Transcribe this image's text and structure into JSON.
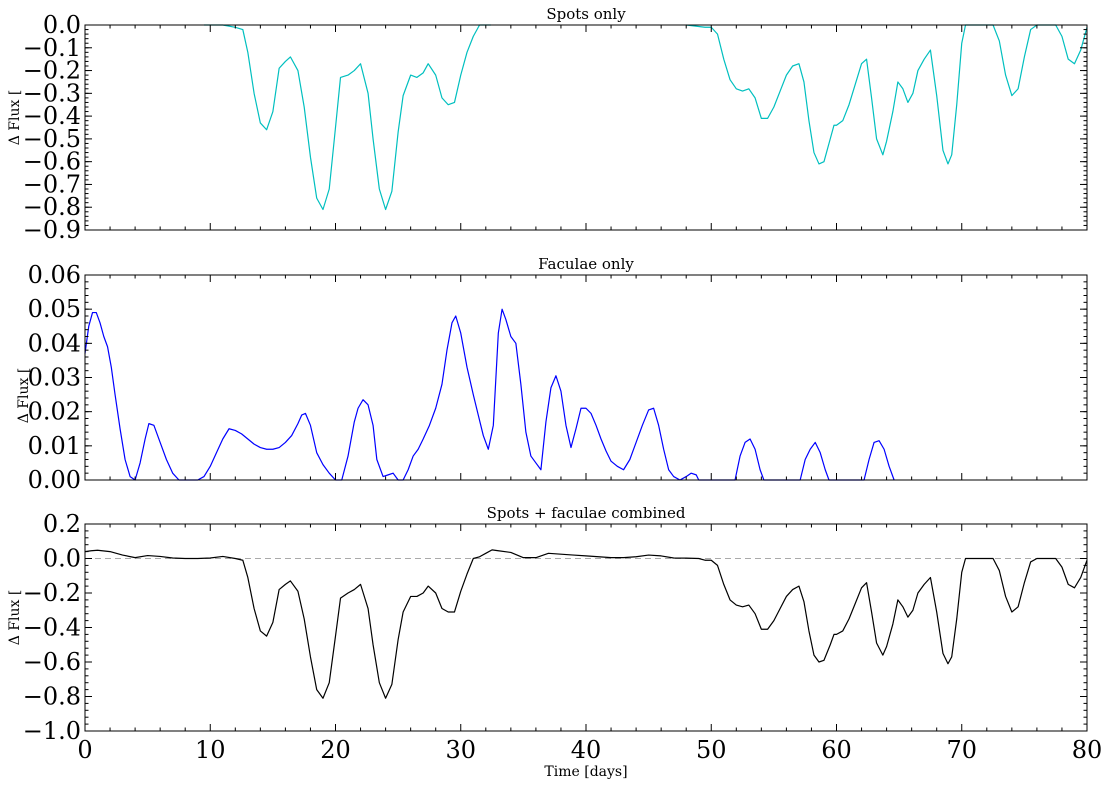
{
  "chart_data": [
    {
      "type": "line",
      "title": "Spots only",
      "xlabel": "",
      "ylabel": "Δ Flux [",
      "xlim": [
        0,
        80
      ],
      "ylim": [
        -0.9,
        0.0
      ],
      "yticks": [
        0.0,
        -0.1,
        -0.2,
        -0.3,
        -0.4,
        -0.5,
        -0.6,
        -0.7,
        -0.8,
        -0.9
      ],
      "ytick_labels": [
        "0.0",
        "−0.1",
        "−0.2",
        "−0.3",
        "−0.4",
        "−0.5",
        "−0.6",
        "−0.7",
        "−0.8",
        "−0.9"
      ],
      "xticks": [
        0,
        10,
        20,
        30,
        40,
        50,
        60,
        70,
        80
      ],
      "xtick_labels": [],
      "grid": false,
      "color": "#00bfbf",
      "series": [
        {
          "x": [
            9.5,
            11.0,
            12.0,
            12.6,
            13.0,
            13.5,
            14.0,
            14.5,
            15.0,
            15.5,
            16.0,
            16.4,
            17.0,
            17.5,
            18.0,
            18.5,
            19.0,
            19.5,
            20.0,
            20.4,
            21.0,
            21.5,
            22.0,
            22.6,
            23.0,
            23.5,
            24.0,
            24.5,
            25.0,
            25.4,
            26.0,
            26.5,
            27.0,
            27.4,
            28.0,
            28.5,
            29.0,
            29.5,
            30.0,
            30.5,
            31.0,
            31.5,
            32.0,
            32.4
          ],
          "y": [
            0.0,
            0.0,
            -0.01,
            -0.02,
            -0.12,
            -0.3,
            -0.43,
            -0.46,
            -0.38,
            -0.19,
            -0.16,
            -0.14,
            -0.2,
            -0.36,
            -0.58,
            -0.76,
            -0.81,
            -0.72,
            -0.45,
            -0.23,
            -0.22,
            -0.2,
            -0.17,
            -0.3,
            -0.5,
            -0.72,
            -0.81,
            -0.73,
            -0.47,
            -0.31,
            -0.22,
            -0.23,
            -0.21,
            -0.17,
            -0.22,
            -0.32,
            -0.35,
            -0.34,
            -0.22,
            -0.12,
            -0.05,
            0.0,
            0.0,
            0.0
          ]
        },
        {
          "x": [
            48.0,
            49.5,
            50.0,
            50.5,
            51.0,
            51.5,
            52.0,
            52.5,
            53.0,
            53.5,
            54.0,
            54.5,
            55.0,
            55.5,
            56.0,
            56.5,
            57.0,
            57.4,
            57.8,
            58.2,
            58.6,
            59.0,
            59.5,
            59.8,
            60.0,
            60.5,
            61.0,
            61.5,
            62.0,
            62.4,
            62.8,
            63.2,
            63.7,
            64.0,
            64.5,
            64.9,
            65.3,
            65.7,
            66.1,
            66.5,
            67.0,
            67.5,
            68.0,
            68.5,
            68.9,
            69.2,
            69.6,
            70.0,
            70.3,
            71.0,
            72.0,
            72.5,
            73.0,
            73.5,
            74.0,
            74.5,
            75.0,
            75.5,
            76.0,
            77.0,
            77.5,
            78.0,
            78.5,
            79.0,
            79.5,
            80.0
          ],
          "y": [
            0.0,
            -0.01,
            -0.01,
            -0.04,
            -0.15,
            -0.24,
            -0.28,
            -0.29,
            -0.28,
            -0.32,
            -0.41,
            -0.41,
            -0.36,
            -0.29,
            -0.22,
            -0.18,
            -0.17,
            -0.25,
            -0.42,
            -0.56,
            -0.61,
            -0.6,
            -0.5,
            -0.44,
            -0.44,
            -0.42,
            -0.35,
            -0.26,
            -0.17,
            -0.15,
            -0.32,
            -0.5,
            -0.57,
            -0.51,
            -0.38,
            -0.25,
            -0.28,
            -0.34,
            -0.3,
            -0.2,
            -0.15,
            -0.11,
            -0.31,
            -0.55,
            -0.61,
            -0.57,
            -0.35,
            -0.08,
            0.0,
            0.0,
            0.0,
            0.0,
            -0.07,
            -0.22,
            -0.31,
            -0.28,
            -0.14,
            -0.02,
            0.0,
            0.0,
            0.0,
            -0.05,
            -0.15,
            -0.17,
            -0.11,
            -0.01
          ]
        }
      ]
    },
    {
      "type": "line",
      "title": "Faculae only",
      "xlabel": "",
      "ylabel": "Δ Flux [",
      "xlim": [
        0,
        80
      ],
      "ylim": [
        0.0,
        0.06
      ],
      "yticks": [
        0.0,
        0.01,
        0.02,
        0.03,
        0.04,
        0.05,
        0.06
      ],
      "ytick_labels": [
        "0.00",
        "0.01",
        "0.02",
        "0.03",
        "0.04",
        "0.05",
        "0.06"
      ],
      "xticks": [
        0,
        10,
        20,
        30,
        40,
        50,
        60,
        70,
        80
      ],
      "xtick_labels": [],
      "grid": false,
      "color": "#0000ff",
      "series": [
        {
          "x": [
            0.0,
            0.3,
            0.6,
            0.9,
            1.2,
            1.5,
            1.8,
            2.1,
            2.4,
            2.8,
            3.2,
            3.6,
            4.0,
            4.4,
            4.8,
            5.1,
            5.5,
            6.0,
            6.5,
            7.0,
            7.5,
            8.0,
            8.5,
            9.0,
            9.5,
            10.0,
            10.5,
            11.0,
            11.5,
            12.0,
            12.5,
            13.0,
            13.5,
            14.0,
            14.5,
            15.0,
            15.5,
            16.0,
            16.5,
            17.0,
            17.3,
            17.6,
            18.0,
            18.5,
            19.0,
            19.5,
            20.0,
            20.5,
            21.0,
            21.5,
            21.8,
            22.2,
            22.6,
            23.0,
            23.3,
            23.8,
            24.2,
            24.6,
            25.0,
            25.4,
            25.8,
            26.2,
            26.6,
            27.0,
            27.5,
            28.0,
            28.5,
            28.9,
            29.3,
            29.6,
            30.0,
            30.5,
            31.0,
            31.4,
            31.8,
            32.2,
            32.6,
            33.0,
            33.3,
            33.6,
            34.0,
            34.4,
            34.8,
            35.2,
            35.6,
            36.0,
            36.4,
            36.8,
            37.2,
            37.6,
            38.0,
            38.4,
            38.8,
            39.2,
            39.6,
            40.0,
            40.4,
            40.8,
            41.2,
            41.6,
            42.0,
            42.5,
            43.0,
            43.5,
            44.0,
            44.5,
            45.0,
            45.4,
            45.8,
            46.2,
            46.6,
            47.0,
            47.5,
            48.0,
            48.4,
            48.8,
            49.0,
            51.9,
            52.3,
            52.7,
            53.1,
            53.5,
            53.9,
            54.2,
            57.1,
            57.5,
            57.9,
            58.3,
            58.7,
            59.1,
            59.4,
            62.2,
            62.6,
            63.0,
            63.4,
            63.8,
            64.2,
            64.6
          ],
          "y": [
            0.037,
            0.045,
            0.049,
            0.049,
            0.046,
            0.042,
            0.039,
            0.033,
            0.025,
            0.015,
            0.006,
            0.001,
            0.0,
            0.005,
            0.012,
            0.0165,
            0.016,
            0.011,
            0.006,
            0.002,
            0.0,
            0.0,
            0.0,
            0.0,
            0.001,
            0.004,
            0.008,
            0.012,
            0.015,
            0.0145,
            0.0135,
            0.012,
            0.0105,
            0.0095,
            0.009,
            0.009,
            0.0095,
            0.011,
            0.013,
            0.0165,
            0.019,
            0.0195,
            0.016,
            0.008,
            0.0045,
            0.002,
            0.0,
            0.0,
            0.007,
            0.017,
            0.021,
            0.0235,
            0.022,
            0.016,
            0.006,
            0.001,
            0.0015,
            0.002,
            0.0,
            0.0,
            0.003,
            0.007,
            0.009,
            0.012,
            0.016,
            0.021,
            0.028,
            0.038,
            0.046,
            0.048,
            0.043,
            0.033,
            0.025,
            0.019,
            0.013,
            0.009,
            0.016,
            0.043,
            0.05,
            0.047,
            0.042,
            0.04,
            0.028,
            0.014,
            0.007,
            0.005,
            0.003,
            0.017,
            0.027,
            0.0305,
            0.026,
            0.016,
            0.0095,
            0.015,
            0.021,
            0.021,
            0.0195,
            0.016,
            0.012,
            0.0085,
            0.0055,
            0.004,
            0.003,
            0.006,
            0.011,
            0.016,
            0.0205,
            0.021,
            0.016,
            0.009,
            0.003,
            0.001,
            0.0,
            0.001,
            0.002,
            0.0015,
            0.0,
            0.0,
            0.007,
            0.011,
            0.012,
            0.009,
            0.003,
            0.0,
            0.0,
            0.006,
            0.009,
            0.011,
            0.008,
            0.003,
            0.0,
            0.0,
            0.006,
            0.011,
            0.0115,
            0.009,
            0.004,
            0.0
          ]
        }
      ]
    },
    {
      "type": "line",
      "title": "Spots + faculae combined",
      "xlabel": "Time [days]",
      "ylabel": "Δ Flux [",
      "xlim": [
        0,
        80
      ],
      "ylim": [
        -1.0,
        0.2
      ],
      "yticks": [
        0.2,
        0.0,
        -0.2,
        -0.4,
        -0.6,
        -0.8,
        -1.0
      ],
      "ytick_labels": [
        "0.2",
        "0.0",
        "−0.2",
        "−0.4",
        "−0.6",
        "−0.8",
        "−1.0"
      ],
      "xticks": [
        0,
        10,
        20,
        30,
        40,
        50,
        60,
        70,
        80
      ],
      "xtick_labels": [
        "0",
        "10",
        "20",
        "30",
        "40",
        "50",
        "60",
        "70",
        "80"
      ],
      "grid": false,
      "color": "#000000",
      "reference_line": {
        "y": 0.0,
        "color": "#aaaaaa",
        "style": "dashed"
      },
      "series": [
        {
          "x": [
            0.0,
            0.5,
            1.0,
            2.0,
            3.0,
            4.0,
            5.0,
            6.0,
            7.0,
            8.0,
            9.0,
            10.0,
            11.0,
            12.0,
            12.6,
            13.0,
            13.5,
            14.0,
            14.5,
            15.0,
            15.5,
            16.0,
            16.4,
            17.0,
            17.5,
            18.0,
            18.5,
            19.0,
            19.5,
            20.0,
            20.4,
            21.0,
            21.5,
            22.0,
            22.6,
            23.0,
            23.5,
            24.0,
            24.5,
            25.0,
            25.4,
            26.0,
            26.5,
            27.0,
            27.4,
            28.0,
            28.5,
            29.0,
            29.5,
            30.0,
            30.5,
            31.0,
            31.5,
            32.0,
            32.5,
            33.0,
            34.0,
            35.0,
            36.0,
            37.0,
            38.0,
            39.0,
            40.0,
            41.0,
            42.0,
            43.0,
            44.0,
            45.0,
            46.0,
            47.0,
            48.0,
            49.0,
            49.5,
            50.0,
            50.5,
            51.0,
            51.5,
            52.0,
            52.5,
            53.0,
            53.5,
            54.0,
            54.5,
            55.0,
            55.5,
            56.0,
            56.5,
            57.0,
            57.4,
            57.8,
            58.2,
            58.6,
            59.0,
            59.5,
            59.8,
            60.0,
            60.5,
            61.0,
            61.5,
            62.0,
            62.4,
            62.8,
            63.2,
            63.7,
            64.0,
            64.5,
            64.9,
            65.3,
            65.7,
            66.1,
            66.5,
            67.0,
            67.5,
            68.0,
            68.5,
            68.9,
            69.2,
            69.6,
            70.0,
            70.3,
            71.0,
            72.0,
            72.5,
            73.0,
            73.5,
            74.0,
            74.5,
            75.0,
            75.5,
            76.0,
            77.0,
            77.5,
            78.0,
            78.5,
            79.0,
            79.5,
            80.0
          ],
          "y": [
            0.04,
            0.045,
            0.048,
            0.04,
            0.02,
            0.005,
            0.017,
            0.012,
            0.003,
            0.0,
            0.0,
            0.003,
            0.012,
            0.0,
            -0.01,
            -0.11,
            -0.29,
            -0.42,
            -0.45,
            -0.37,
            -0.18,
            -0.15,
            -0.13,
            -0.19,
            -0.35,
            -0.57,
            -0.76,
            -0.81,
            -0.72,
            -0.45,
            -0.23,
            -0.2,
            -0.18,
            -0.15,
            -0.29,
            -0.5,
            -0.72,
            -0.81,
            -0.73,
            -0.47,
            -0.31,
            -0.22,
            -0.22,
            -0.2,
            -0.16,
            -0.2,
            -0.29,
            -0.31,
            -0.31,
            -0.19,
            -0.09,
            0.0,
            0.01,
            0.03,
            0.05,
            0.045,
            0.035,
            0.005,
            0.005,
            0.03,
            0.025,
            0.02,
            0.015,
            0.01,
            0.005,
            0.005,
            0.01,
            0.02,
            0.015,
            0.003,
            0.002,
            0.0,
            -0.01,
            -0.01,
            -0.04,
            -0.15,
            -0.24,
            -0.27,
            -0.28,
            -0.27,
            -0.32,
            -0.41,
            -0.41,
            -0.36,
            -0.29,
            -0.22,
            -0.18,
            -0.16,
            -0.25,
            -0.42,
            -0.56,
            -0.6,
            -0.59,
            -0.5,
            -0.44,
            -0.44,
            -0.42,
            -0.35,
            -0.26,
            -0.17,
            -0.14,
            -0.31,
            -0.49,
            -0.56,
            -0.51,
            -0.38,
            -0.24,
            -0.28,
            -0.34,
            -0.3,
            -0.2,
            -0.15,
            -0.11,
            -0.31,
            -0.55,
            -0.61,
            -0.57,
            -0.35,
            -0.08,
            0.0,
            0.0,
            0.0,
            0.0,
            -0.07,
            -0.22,
            -0.31,
            -0.28,
            -0.14,
            -0.02,
            0.0,
            0.0,
            0.0,
            -0.05,
            -0.15,
            -0.17,
            -0.11,
            -0.01
          ]
        }
      ]
    }
  ]
}
